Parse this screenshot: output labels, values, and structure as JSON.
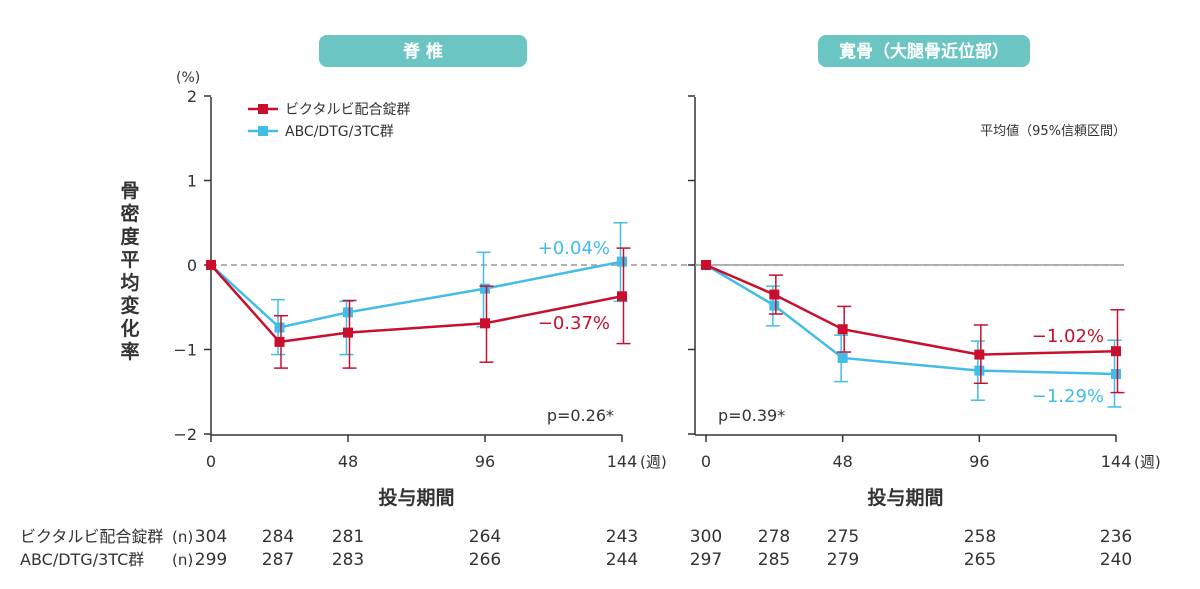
{
  "ylabel": "骨密度平均変化率",
  "y_unit": "(%)",
  "xlabel": "投与期間",
  "x_unit": "(週)",
  "ci_note": "平均値（95%信頼区間）",
  "colors": {
    "red": "#c8102e",
    "blue": "#41bde8",
    "badge": "#6bc5c2",
    "axis": "#333333",
    "ref": "#999999"
  },
  "legend": [
    {
      "name": "ビクタルビ配合錠群",
      "color": "#c8102e"
    },
    {
      "name": "ABC/DTG/3TC群",
      "color": "#41bde8"
    }
  ],
  "n_table": {
    "label": "(n)",
    "rows": [
      {
        "name": "ビクタルビ配合錠群",
        "spine": [
          "304",
          "284",
          "281",
          "264",
          "243"
        ],
        "hip": [
          "300",
          "278",
          "275",
          "258",
          "236"
        ]
      },
      {
        "name": "ABC/DTG/3TC群",
        "spine": [
          "299",
          "287",
          "283",
          "266",
          "244"
        ],
        "hip": [
          "297",
          "285",
          "279",
          "265",
          "240"
        ]
      }
    ]
  },
  "chart_data": [
    {
      "type": "line",
      "title": "脊 椎",
      "xlabel": "投与期間",
      "ylabel": "骨密度平均変化率",
      "x_ticks": [
        0,
        48,
        96,
        144
      ],
      "ylim": [
        -2,
        2
      ],
      "y_ticks": [
        2,
        1,
        0,
        -1,
        -2
      ],
      "p_value": "p=0.26*",
      "series": [
        {
          "name": "ビクタルビ配合錠群",
          "color": "#c8102e",
          "x": [
            0,
            24,
            48,
            96,
            144
          ],
          "y": [
            0,
            -0.91,
            -0.8,
            -0.69,
            -0.37
          ],
          "lo": [
            0,
            -1.22,
            -1.22,
            -1.15,
            -0.93
          ],
          "hi": [
            0,
            -0.6,
            -0.42,
            -0.25,
            0.2
          ],
          "end_label": "−0.37%"
        },
        {
          "name": "ABC/DTG/3TC群",
          "color": "#41bde8",
          "x": [
            0,
            24,
            48,
            96,
            144
          ],
          "y": [
            0,
            -0.74,
            -0.56,
            -0.28,
            0.04
          ],
          "lo": [
            0,
            -1.06,
            -1.06,
            -0.73,
            -0.43
          ],
          "hi": [
            0,
            -0.41,
            -0.43,
            0.15,
            0.5
          ],
          "end_label": "+0.04%"
        }
      ]
    },
    {
      "type": "line",
      "title": "寛骨（大腿骨近位部）",
      "xlabel": "投与期間",
      "ylabel": "骨密度平均変化率",
      "x_ticks": [
        0,
        48,
        96,
        144
      ],
      "ylim": [
        -2,
        2
      ],
      "y_ticks": [
        2,
        1,
        0,
        -1,
        -2
      ],
      "p_value": "p=0.39*",
      "series": [
        {
          "name": "ビクタルビ配合錠群",
          "color": "#c8102e",
          "x": [
            0,
            24,
            48,
            96,
            144
          ],
          "y": [
            0,
            -0.35,
            -0.76,
            -1.06,
            -1.02
          ],
          "lo": [
            0,
            -0.58,
            -1.03,
            -1.4,
            -1.51
          ],
          "hi": [
            0,
            -0.12,
            -0.49,
            -0.71,
            -0.53
          ],
          "end_label": "−1.02%"
        },
        {
          "name": "ABC/DTG/3TC群",
          "color": "#41bde8",
          "x": [
            0,
            24,
            48,
            96,
            144
          ],
          "y": [
            0,
            -0.48,
            -1.1,
            -1.25,
            -1.29
          ],
          "lo": [
            0,
            -0.72,
            -1.38,
            -1.6,
            -1.68
          ],
          "hi": [
            0,
            -0.25,
            -0.83,
            -0.9,
            -0.89
          ],
          "end_label": "−1.29%"
        }
      ]
    }
  ]
}
